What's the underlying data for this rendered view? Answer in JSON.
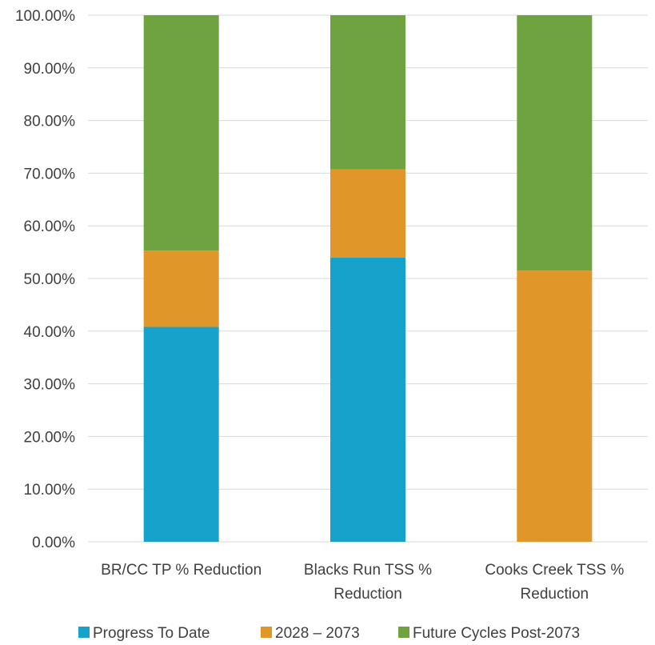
{
  "chart_data": {
    "type": "stacked-bar-100",
    "title": "",
    "xlabel": "",
    "ylabel": "",
    "categories": [
      [
        "BR/CC TP % Reduction"
      ],
      [
        "Blacks Run TSS %",
        "Reduction"
      ],
      [
        "Cooks Creek TSS %",
        "Reduction"
      ]
    ],
    "y_ticks": [
      "0.00%",
      "10.00%",
      "20.00%",
      "30.00%",
      "40.00%",
      "50.00%",
      "60.00%",
      "70.00%",
      "80.00%",
      "90.00%",
      "100.00%"
    ],
    "ylim": [
      0,
      100
    ],
    "grid": true,
    "legend_position": "bottom",
    "series": [
      {
        "name": "Progress To Date",
        "color": "#17A2CC",
        "values": [
          40.8,
          54.0,
          0.0
        ]
      },
      {
        "name": "2028 – 2073",
        "color": "#E09628",
        "values": [
          14.5,
          16.7,
          51.5
        ]
      },
      {
        "name": "Future Cycles Post-2073",
        "color": "#6FA33F",
        "values": [
          44.7,
          29.3,
          48.5
        ]
      }
    ]
  }
}
